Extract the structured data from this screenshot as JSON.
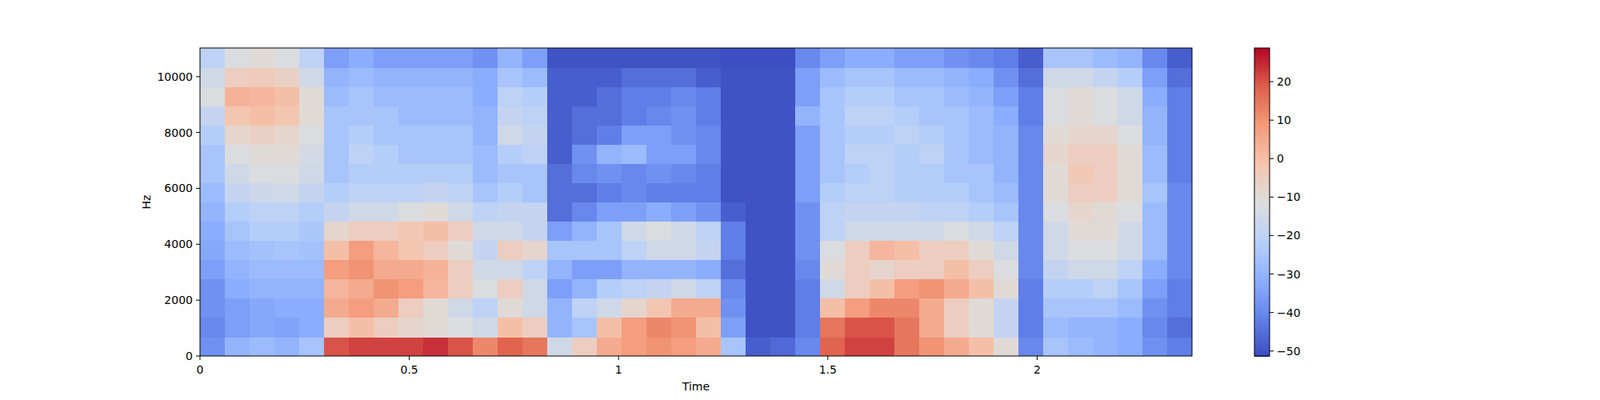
{
  "chart_data": {
    "type": "heatmap",
    "xlabel": "Time",
    "ylabel": "Hz",
    "color": "coolwarm",
    "xlim": [
      0,
      2.37
    ],
    "ylim": [
      0,
      11025
    ],
    "xticks": [
      0,
      0.5,
      1,
      1.5,
      2
    ],
    "yticks": [
      0,
      2000,
      4000,
      6000,
      8000,
      10000
    ],
    "zlim": [
      -51.3,
      28.75
    ],
    "zticks": [
      {
        "value": -50,
        "label": "−50"
      },
      {
        "value": -40,
        "label": "−40"
      },
      {
        "value": -30,
        "label": "−30"
      },
      {
        "value": -20,
        "label": "−20"
      },
      {
        "value": -10,
        "label": "−10"
      },
      0,
      10,
      20
    ],
    "cells": [
      [
        -38,
        -40,
        -38,
        -38,
        -35,
        -33,
        -32,
        -30,
        -28,
        -25,
        -25,
        -22,
        -18,
        -12,
        -15,
        -20
      ],
      [
        -30,
        -35,
        -35,
        -32,
        -30,
        -28,
        -25,
        -22,
        -18,
        -15,
        -12,
        -8,
        -2,
        3,
        -5,
        -12
      ],
      [
        -28,
        -33,
        -33,
        -30,
        -28,
        -26,
        -22,
        -20,
        -16,
        -12,
        -10,
        -6,
        0,
        2,
        -4,
        -10
      ],
      [
        -30,
        -34,
        -32,
        -30,
        -28,
        -25,
        -22,
        -20,
        -15,
        -12,
        -10,
        -8,
        -2,
        0,
        -6,
        -12
      ],
      [
        -25,
        -32,
        -32,
        -30,
        -28,
        -26,
        -24,
        -22,
        -18,
        -15,
        -14,
        -12,
        -10,
        -10,
        -15,
        -20
      ],
      [
        20,
        -5,
        5,
        2,
        8,
        0,
        -8,
        -18,
        -22,
        -25,
        -25,
        -25,
        -25,
        -28,
        -30,
        -35
      ],
      [
        22,
        0,
        8,
        5,
        10,
        8,
        -5,
        -15,
        -20,
        -22,
        -20,
        -22,
        -25,
        -25,
        -28,
        -32
      ],
      [
        22,
        -5,
        5,
        10,
        5,
        2,
        -5,
        -15,
        -20,
        -22,
        -22,
        -25,
        -25,
        -28,
        -30,
        -35
      ],
      [
        22,
        -8,
        -5,
        8,
        5,
        -2,
        -3,
        -12,
        -20,
        -22,
        -25,
        -25,
        -28,
        -28,
        -30,
        -35
      ],
      [
        24,
        -10,
        -10,
        2,
        3,
        -5,
        0,
        -10,
        -18,
        -22,
        -25,
        -25,
        -28,
        -28,
        -30,
        -35
      ],
      [
        20,
        -12,
        -15,
        -5,
        -5,
        -10,
        -5,
        -15,
        -20,
        -22,
        -25,
        -25,
        -28,
        -28,
        -30,
        -35
      ],
      [
        12,
        -15,
        -20,
        -12,
        -15,
        -18,
        -15,
        -20,
        -25,
        -28,
        -28,
        -30,
        -30,
        -32,
        -32,
        -38
      ],
      [
        18,
        0,
        -10,
        -5,
        -15,
        -5,
        -15,
        -18,
        -22,
        -25,
        -22,
        -15,
        -18,
        -20,
        -25,
        -30
      ],
      [
        15,
        -5,
        -15,
        -15,
        -20,
        -8,
        -18,
        -18,
        -25,
        -25,
        -20,
        -18,
        -20,
        -22,
        -28,
        -35
      ],
      [
        -15,
        -30,
        -30,
        -35,
        -30,
        -25,
        -35,
        -45,
        -45,
        -45,
        -48,
        -48,
        -48,
        -48,
        -48,
        -50
      ],
      [
        -5,
        -25,
        -20,
        -30,
        -35,
        -25,
        -30,
        -40,
        -45,
        -40,
        -38,
        -45,
        -45,
        -48,
        -48,
        -50
      ],
      [
        5,
        0,
        -15,
        -22,
        -35,
        -25,
        -25,
        -35,
        -42,
        -38,
        -30,
        -42,
        -45,
        -45,
        -48,
        -50
      ],
      [
        8,
        8,
        -8,
        -20,
        -30,
        -20,
        -15,
        -35,
        -40,
        -40,
        -28,
        -35,
        -42,
        -42,
        -45,
        -50
      ],
      [
        10,
        12,
        -2,
        -18,
        -30,
        -15,
        -12,
        -32,
        -42,
        -38,
        -35,
        -35,
        -40,
        -42,
        -45,
        -50
      ],
      [
        8,
        10,
        5,
        -15,
        -30,
        -15,
        -15,
        -35,
        -42,
        -40,
        -35,
        -38,
        -38,
        -40,
        -45,
        -50
      ],
      [
        5,
        0,
        5,
        -20,
        -32,
        -18,
        -20,
        -38,
        -42,
        -42,
        -40,
        -40,
        -42,
        -42,
        -48,
        -50
      ],
      [
        -25,
        -35,
        -38,
        -40,
        -45,
        -42,
        -42,
        -48,
        -50,
        -50,
        -50,
        -50,
        -50,
        -50,
        -50,
        -51
      ],
      [
        -48,
        -50,
        -50,
        -50,
        -50,
        -50,
        -50,
        -50,
        -50,
        -50,
        -50,
        -50,
        -50,
        -50,
        -50,
        -51
      ],
      [
        -46,
        -50,
        -50,
        -50,
        -50,
        -50,
        -50,
        -50,
        -50,
        -50,
        -50,
        -50,
        -50,
        -50,
        -50,
        -51
      ],
      [
        -40,
        -42,
        -42,
        -42,
        -40,
        -38,
        -38,
        -38,
        -35,
        -35,
        -35,
        -35,
        -30,
        -35,
        -35,
        -40
      ],
      [
        18,
        15,
        0,
        -15,
        -10,
        -12,
        -20,
        -20,
        -22,
        -25,
        -25,
        -25,
        -25,
        -25,
        -28,
        -35
      ],
      [
        22,
        20,
        8,
        -5,
        -5,
        -5,
        -15,
        -18,
        -20,
        -22,
        -20,
        -22,
        -20,
        -22,
        -25,
        -32
      ],
      [
        22,
        20,
        12,
        0,
        -8,
        2,
        -15,
        -18,
        -20,
        -20,
        -20,
        -22,
        -20,
        -22,
        -25,
        -32
      ],
      [
        15,
        15,
        12,
        8,
        -5,
        0,
        -15,
        -18,
        -22,
        -22,
        -22,
        -20,
        -22,
        -25,
        -28,
        -35
      ],
      [
        10,
        5,
        5,
        10,
        -5,
        -5,
        -15,
        -20,
        -22,
        -22,
        -20,
        -22,
        -25,
        -25,
        -28,
        -35
      ],
      [
        5,
        -5,
        -5,
        5,
        0,
        -5,
        -12,
        -20,
        -22,
        -25,
        -25,
        -25,
        -25,
        -28,
        -30,
        -38
      ],
      [
        0,
        -10,
        -10,
        0,
        -5,
        -10,
        -15,
        -22,
        -25,
        -25,
        -28,
        -28,
        -28,
        -30,
        -32,
        -40
      ],
      [
        -10,
        -18,
        -18,
        -10,
        -12,
        -15,
        -20,
        -25,
        -28,
        -30,
        -30,
        -30,
        -32,
        -35,
        -38,
        -42
      ],
      [
        -40,
        -42,
        -42,
        -42,
        -40,
        -40,
        -40,
        -40,
        -40,
        -40,
        -40,
        -40,
        -42,
        -42,
        -45,
        -48
      ],
      [
        -25,
        -28,
        -25,
        -22,
        -18,
        -15,
        -15,
        -12,
        -10,
        -10,
        -8,
        -10,
        -12,
        -12,
        -15,
        -25
      ],
      [
        -28,
        -30,
        -25,
        -22,
        -15,
        -12,
        -10,
        -8,
        -5,
        -3,
        -5,
        -8,
        -10,
        -10,
        -15,
        -25
      ],
      [
        -30,
        -30,
        -25,
        -20,
        -15,
        -12,
        -10,
        -10,
        -5,
        -5,
        -5,
        -8,
        -12,
        -12,
        -18,
        -28
      ],
      [
        -32,
        -32,
        -28,
        -25,
        -20,
        -15,
        -15,
        -12,
        -10,
        -10,
        -10,
        -12,
        -15,
        -15,
        -22,
        -30
      ],
      [
        -38,
        -40,
        -38,
        -35,
        -32,
        -28,
        -28,
        -28,
        -25,
        -28,
        -28,
        -30,
        -30,
        -32,
        -35,
        -40
      ],
      [
        -42,
        -45,
        -42,
        -42,
        -40,
        -40,
        -40,
        -40,
        -40,
        -42,
        -42,
        -42,
        -42,
        -42,
        -45,
        -48
      ]
    ]
  }
}
